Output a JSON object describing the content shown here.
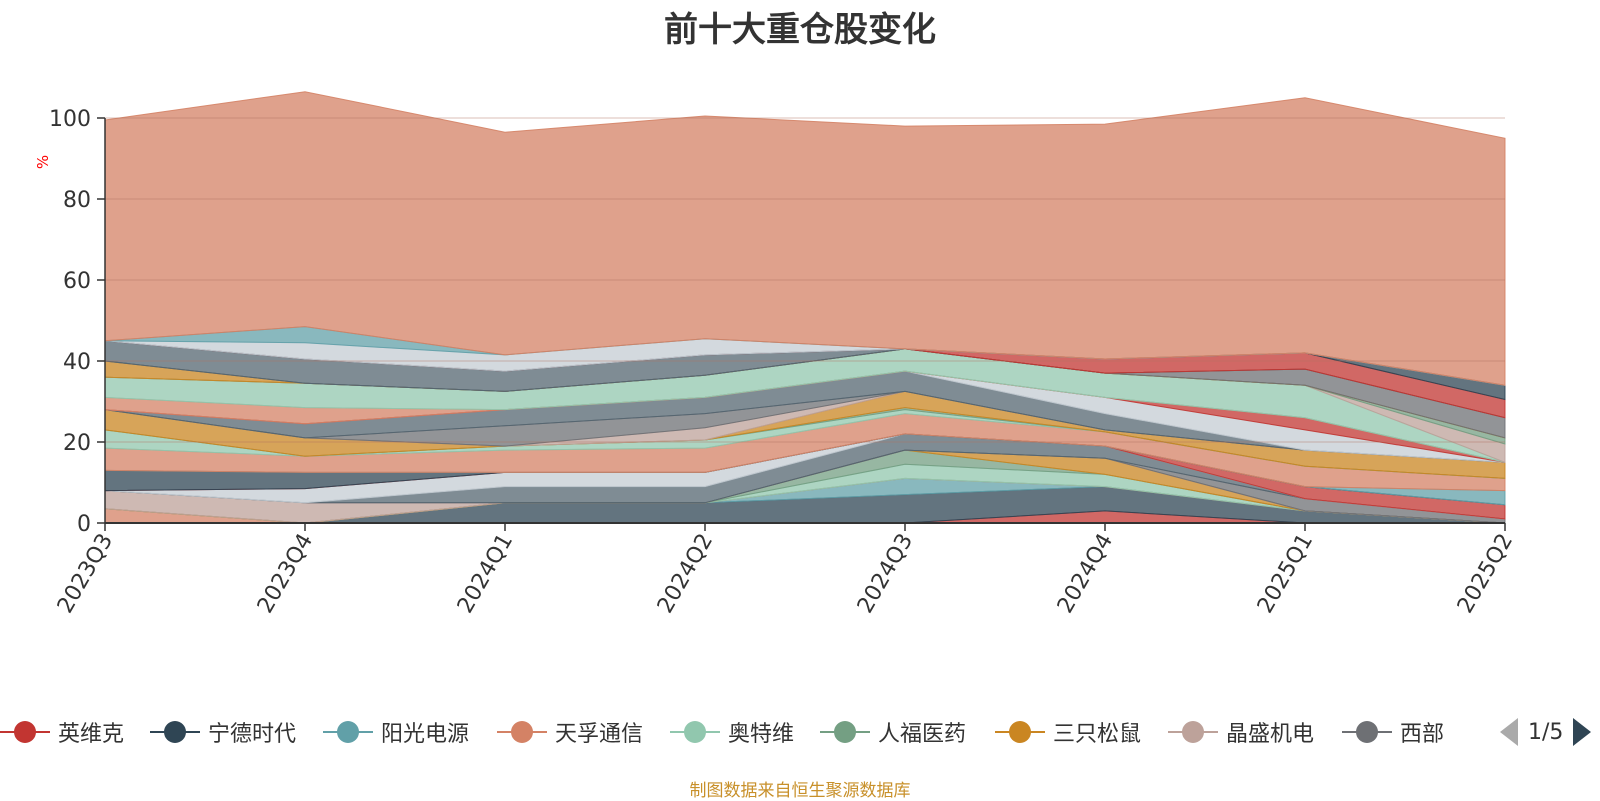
{
  "title": "前十大重仓股变化",
  "footer": "制图数据来自恒生聚源数据库",
  "legend_pager": "1/5",
  "chart_data": {
    "type": "area",
    "stacked": true,
    "title": "前十大重仓股变化",
    "ylabel": "%",
    "ylim": [
      0,
      100
    ],
    "yticks": [
      0,
      20,
      40,
      60,
      80,
      100
    ],
    "grid": true,
    "legend_position": "bottom",
    "categories": [
      "2023Q3",
      "2023Q4",
      "2024Q1",
      "2024Q2",
      "2024Q3",
      "2024Q4",
      "2025Q1",
      "2025Q2"
    ],
    "series": [
      {
        "name": "英维克",
        "color": "#c23531",
        "values": [
          0,
          0,
          0,
          0,
          0,
          3,
          0,
          0
        ]
      },
      {
        "name": "宁德时代",
        "color": "#2f4554",
        "values": [
          0,
          0,
          5,
          5,
          7,
          6,
          3,
          0
        ]
      },
      {
        "name": "阳光电源",
        "color": "#61a0a8",
        "values": [
          0,
          0,
          0,
          0,
          4,
          0,
          0,
          0
        ]
      },
      {
        "name": "天孚通信",
        "color": "#d48265",
        "values": [
          3.5,
          0,
          0,
          0,
          0,
          0,
          0,
          0
        ]
      },
      {
        "name": "奥特维",
        "color": "#91c7ae",
        "values": [
          0,
          0,
          0,
          0,
          3.5,
          3,
          0,
          0
        ]
      },
      {
        "name": "人福医药",
        "color": "#749f83",
        "values": [
          0,
          0,
          0,
          0,
          3.5,
          0,
          0,
          0
        ]
      },
      {
        "name": "三只松鼠",
        "color": "#ca8622",
        "values": [
          0,
          0,
          0,
          0,
          0,
          4,
          0,
          0
        ]
      },
      {
        "name": "晶盛机电",
        "color": "#bda29a",
        "values": [
          4.5,
          5,
          0,
          0,
          0,
          0,
          0,
          0
        ]
      },
      {
        "name": "西部",
        "color": "#6e7074",
        "values": [
          0,
          0,
          0,
          0,
          0,
          0,
          3,
          1
        ]
      },
      {
        "name": "",
        "color": "#546570",
        "values": [
          0,
          0,
          4,
          4,
          4,
          3,
          0,
          0
        ]
      },
      {
        "name": "",
        "color": "#c4ccd3",
        "values": [
          0,
          3.5,
          3.5,
          3.5,
          0,
          0,
          0,
          0
        ]
      },
      {
        "name": "",
        "color": "#c23531",
        "values": [
          0,
          0,
          0,
          0,
          0,
          0,
          3,
          3.5
        ]
      },
      {
        "name": "",
        "color": "#2f4554",
        "values": [
          5,
          4,
          0,
          0,
          0,
          0,
          0,
          0
        ]
      },
      {
        "name": "",
        "color": "#61a0a8",
        "values": [
          0,
          0,
          0,
          0,
          0,
          0,
          0,
          3.5
        ]
      },
      {
        "name": "",
        "color": "#d48265",
        "values": [
          5.5,
          4,
          5.5,
          6,
          5,
          3.5,
          5,
          3
        ]
      },
      {
        "name": "",
        "color": "#91c7ae",
        "values": [
          4.5,
          0,
          1,
          2,
          1,
          0,
          0,
          0
        ]
      },
      {
        "name": "",
        "color": "#749f83",
        "values": [
          0,
          0,
          0,
          0,
          0.5,
          0,
          0,
          0
        ]
      },
      {
        "name": "",
        "color": "#ca8622",
        "values": [
          5,
          4.5,
          0,
          0,
          4,
          0.5,
          4,
          4
        ]
      },
      {
        "name": "",
        "color": "#bda29a",
        "values": [
          0,
          0,
          0,
          3,
          0,
          0,
          0,
          0
        ]
      },
      {
        "name": "",
        "color": "#6e7074",
        "values": [
          0,
          0,
          5,
          3.5,
          0,
          0,
          0,
          0
        ]
      },
      {
        "name": "",
        "color": "#546570",
        "values": [
          0,
          3.5,
          4,
          4,
          5,
          4,
          0,
          0
        ]
      },
      {
        "name": "",
        "color": "#c4ccd3",
        "values": [
          0,
          0,
          0,
          0,
          0,
          4,
          5,
          0
        ]
      },
      {
        "name": "",
        "color": "#c23531",
        "values": [
          0,
          0,
          0,
          0,
          0,
          0,
          3,
          0
        ]
      },
      {
        "name": "",
        "color": "#d48265",
        "values": [
          3,
          4,
          0,
          0,
          0,
          0,
          0,
          0
        ]
      },
      {
        "name": "",
        "color": "#91c7ae",
        "values": [
          5,
          6,
          4.5,
          5.5,
          5.5,
          6,
          8,
          0
        ]
      },
      {
        "name": "",
        "color": "#bda29a",
        "values": [
          0,
          0,
          0,
          0,
          0,
          0,
          0,
          4.5
        ]
      },
      {
        "name": "",
        "color": "#749f83",
        "values": [
          0,
          0,
          0,
          0,
          0,
          0,
          0,
          1.5
        ]
      },
      {
        "name": "",
        "color": "#ca8622",
        "values": [
          4,
          0,
          0,
          0,
          0,
          0,
          0,
          0
        ]
      },
      {
        "name": "",
        "color": "#6e7074",
        "values": [
          0,
          0,
          0,
          0,
          0,
          0,
          4,
          5
        ]
      },
      {
        "name": "",
        "color": "#546570",
        "values": [
          5,
          6,
          5,
          5,
          0,
          0,
          0,
          0
        ]
      },
      {
        "name": "",
        "color": "#c23531",
        "values": [
          0,
          0,
          0,
          0,
          0,
          3.5,
          4,
          4.5
        ]
      },
      {
        "name": "",
        "color": "#2f4554",
        "values": [
          0,
          0,
          0,
          0,
          0,
          0,
          0,
          3.5
        ]
      },
      {
        "name": "",
        "color": "#c4ccd3",
        "values": [
          0,
          4,
          4,
          4,
          0,
          0,
          0,
          0
        ]
      },
      {
        "name": "",
        "color": "#61a0a8",
        "values": [
          0,
          4,
          0,
          0,
          0,
          0,
          0,
          0
        ]
      },
      {
        "name": "",
        "color": "#d48265",
        "values": [
          54.5,
          58,
          55,
          55,
          55,
          58,
          63,
          61
        ]
      }
    ]
  },
  "icons": {
    "legend_prev": "triangle-left-icon",
    "legend_next": "triangle-right-icon"
  }
}
